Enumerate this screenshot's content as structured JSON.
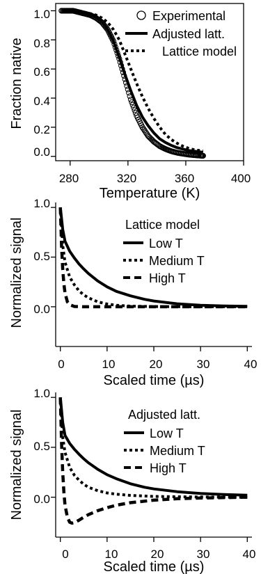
{
  "chart_data": [
    {
      "type": "line",
      "xlabel": "Temperature (K)",
      "ylabel": "Fraction native",
      "xlim": [
        270,
        400
      ],
      "ylim": [
        -0.03,
        1.05
      ],
      "xticks": [
        "280",
        "320",
        "360",
        "400"
      ],
      "yticks": [
        "0.0",
        "0.2",
        "0.4",
        "0.6",
        "0.8",
        "1.0"
      ],
      "legend_position": "top-right",
      "series": [
        {
          "name": "Experimental",
          "style": "open-circle",
          "x": [
            274,
            278,
            282,
            286,
            290,
            294,
            298,
            302,
            306,
            310,
            314,
            318,
            322,
            326,
            330,
            334,
            338,
            342,
            346,
            350,
            354,
            358,
            362,
            366,
            370,
            372
          ],
          "y": [
            1.0,
            1.0,
            1.0,
            0.99,
            0.98,
            0.97,
            0.95,
            0.92,
            0.87,
            0.79,
            0.67,
            0.53,
            0.39,
            0.28,
            0.2,
            0.14,
            0.1,
            0.07,
            0.05,
            0.035,
            0.025,
            0.018,
            0.012,
            0.008,
            0.005,
            0.004
          ]
        },
        {
          "name": "Adjusted latt.",
          "style": "solid",
          "x": [
            274,
            278,
            282,
            286,
            290,
            294,
            298,
            302,
            306,
            310,
            314,
            318,
            322,
            326,
            330,
            334,
            338,
            342,
            346,
            350,
            354,
            358,
            362,
            366,
            370,
            372
          ],
          "y": [
            1.0,
            1.0,
            0.995,
            0.99,
            0.985,
            0.975,
            0.955,
            0.925,
            0.87,
            0.79,
            0.68,
            0.56,
            0.45,
            0.35,
            0.27,
            0.21,
            0.16,
            0.12,
            0.095,
            0.075,
            0.06,
            0.05,
            0.04,
            0.035,
            0.03,
            0.028
          ]
        },
        {
          "name": "Lattice model",
          "style": "dotted",
          "x": [
            274,
            278,
            282,
            286,
            290,
            294,
            298,
            302,
            306,
            310,
            314,
            318,
            322,
            326,
            330,
            334,
            338,
            342,
            346,
            350,
            354,
            358,
            362,
            366,
            370,
            372
          ],
          "y": [
            1.0,
            1.0,
            1.0,
            0.995,
            0.99,
            0.98,
            0.97,
            0.95,
            0.92,
            0.87,
            0.8,
            0.7,
            0.6,
            0.5,
            0.41,
            0.33,
            0.26,
            0.2,
            0.15,
            0.115,
            0.09,
            0.07,
            0.055,
            0.045,
            0.04,
            0.037
          ]
        }
      ]
    },
    {
      "type": "line",
      "xlabel": "Scaled time (µs)",
      "ylabel": "Normalized signal",
      "xlim": [
        -1,
        41
      ],
      "ylim": [
        -0.4,
        1.05
      ],
      "xticks": [
        "0",
        "10",
        "20",
        "30",
        "40"
      ],
      "yticks": [
        "0.0",
        "0.5",
        "1.0"
      ],
      "legend_position": "top-right",
      "legend_title": "Lattice model",
      "series": [
        {
          "name": "Low T",
          "style": "solid",
          "x": [
            0,
            0.5,
            1,
            2,
            3,
            4,
            5,
            6,
            8,
            10,
            12,
            15,
            18,
            20,
            25,
            30,
            35,
            40
          ],
          "y": [
            1.0,
            0.78,
            0.66,
            0.56,
            0.49,
            0.43,
            0.38,
            0.335,
            0.26,
            0.2,
            0.155,
            0.11,
            0.075,
            0.058,
            0.03,
            0.015,
            0.008,
            0.004
          ]
        },
        {
          "name": "Medium T",
          "style": "dotted",
          "x": [
            0,
            0.5,
            1,
            2,
            3,
            4,
            5,
            6,
            8,
            10,
            12,
            15,
            20,
            30,
            40
          ],
          "y": [
            1.0,
            0.62,
            0.45,
            0.3,
            0.22,
            0.16,
            0.12,
            0.09,
            0.05,
            0.028,
            0.015,
            0.006,
            0.002,
            0.0,
            0.0
          ]
        },
        {
          "name": "High T",
          "style": "dashed",
          "x": [
            0,
            0.25,
            0.5,
            0.75,
            1,
            1.5,
            2,
            3,
            5,
            10,
            20,
            40
          ],
          "y": [
            1.0,
            0.62,
            0.38,
            0.23,
            0.14,
            0.05,
            0.02,
            0.003,
            0.0,
            0.0,
            0.0,
            0.0
          ]
        }
      ]
    },
    {
      "type": "line",
      "xlabel": "Scaled time (µs)",
      "ylabel": "Normalized signal",
      "xlim": [
        -1,
        41
      ],
      "ylim": [
        -0.4,
        1.05
      ],
      "xticks": [
        "0",
        "10",
        "20",
        "30",
        "40"
      ],
      "yticks": [
        "0.0",
        "0.5",
        "1.0"
      ],
      "legend_position": "top-right",
      "legend_title": "Adjusted latt.",
      "series": [
        {
          "name": "Low T",
          "style": "solid",
          "x": [
            0,
            0.5,
            1,
            2,
            3,
            4,
            5,
            6,
            8,
            10,
            12,
            15,
            18,
            20,
            25,
            30,
            35,
            40
          ],
          "y": [
            1.0,
            0.75,
            0.62,
            0.54,
            0.48,
            0.43,
            0.385,
            0.345,
            0.28,
            0.225,
            0.185,
            0.135,
            0.1,
            0.083,
            0.055,
            0.038,
            0.027,
            0.02
          ]
        },
        {
          "name": "Medium T",
          "style": "dotted",
          "x": [
            0,
            0.5,
            1,
            2,
            3,
            4,
            5,
            6,
            8,
            10,
            12,
            15,
            20,
            25,
            30,
            35,
            40
          ],
          "y": [
            1.0,
            0.6,
            0.45,
            0.3,
            0.22,
            0.17,
            0.13,
            0.1,
            0.065,
            0.043,
            0.03,
            0.018,
            0.008,
            0.004,
            0.002,
            0.0,
            0.0
          ]
        },
        {
          "name": "High T",
          "style": "dashed",
          "x": [
            0,
            0.25,
            0.5,
            0.75,
            1,
            1.5,
            2,
            2.5,
            3,
            4,
            5,
            6,
            8,
            10,
            12,
            15,
            20,
            25,
            30,
            40
          ],
          "y": [
            1.0,
            0.55,
            0.25,
            0.05,
            -0.08,
            -0.2,
            -0.25,
            -0.26,
            -0.255,
            -0.23,
            -0.2,
            -0.175,
            -0.135,
            -0.105,
            -0.08,
            -0.055,
            -0.03,
            -0.015,
            -0.008,
            0.0
          ]
        }
      ]
    }
  ]
}
